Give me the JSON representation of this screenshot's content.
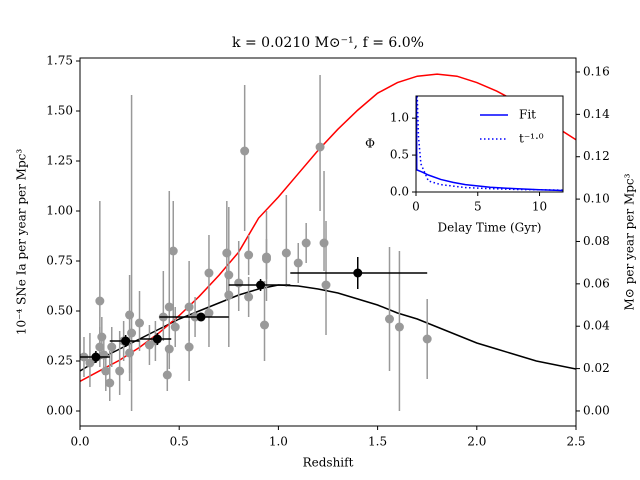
{
  "chart_data": [
    {
      "type": "errorbar",
      "title": "k = 0.0210 M⊙⁻¹, f = 6.0%",
      "xlabel": "Redshift",
      "ylabel": "10⁻⁴ SNe Ia per year per Mpc³",
      "y2label": "M⊙ per year per Mpc³",
      "xlim": [
        0,
        2.5
      ],
      "ylim": [
        -0.075,
        1.765
      ],
      "y2lim": [
        -0.0071,
        0.1666
      ],
      "xticks": [
        {
          "value": 0,
          "label": "0.0"
        },
        {
          "value": 0.5,
          "label": "0.5"
        },
        {
          "value": 1,
          "label": "1.0"
        },
        {
          "value": 1.5,
          "label": "1.5"
        },
        {
          "value": 2,
          "label": "2.0"
        },
        {
          "value": 2.5,
          "label": "2.5"
        }
      ],
      "yticks": [
        {
          "value": 0,
          "label": "0.00"
        },
        {
          "value": 0.25,
          "label": "0.25"
        },
        {
          "value": 0.5,
          "label": "0.50"
        },
        {
          "value": 0.75,
          "label": "0.75"
        },
        {
          "value": 1,
          "label": "1.00"
        },
        {
          "value": 1.25,
          "label": "1.25"
        },
        {
          "value": 1.5,
          "label": "1.50"
        },
        {
          "value": 1.75,
          "label": "1.75"
        }
      ],
      "y2ticks": [
        {
          "value": 0,
          "label": "0.00"
        },
        {
          "value": 0.02,
          "label": "0.02"
        },
        {
          "value": 0.04,
          "label": "0.04"
        },
        {
          "value": 0.06,
          "label": "0.06"
        },
        {
          "value": 0.08,
          "label": "0.08"
        },
        {
          "value": 0.1,
          "label": "0.10"
        },
        {
          "value": 0.12,
          "label": "0.12"
        },
        {
          "value": 0.14,
          "label": "0.14"
        },
        {
          "value": 0.16,
          "label": "0.16"
        }
      ],
      "points": {
        "color": "#999999",
        "x": [
          0.02,
          0.05,
          0.1,
          0.1,
          0.11,
          0.12,
          0.13,
          0.15,
          0.16,
          0.2,
          0.22,
          0.25,
          0.25,
          0.26,
          0.3,
          0.35,
          0.38,
          0.42,
          0.44,
          0.45,
          0.45,
          0.47,
          0.48,
          0.55,
          0.55,
          0.58,
          0.65,
          0.65,
          0.74,
          0.75,
          0.75,
          0.8,
          0.83,
          0.85,
          0.85,
          0.93,
          0.94,
          0.94,
          1.04,
          1.1,
          1.14,
          1.21,
          1.23,
          1.24,
          1.56,
          1.61,
          1.75
        ],
        "values": [
          0.27,
          0.24,
          0.55,
          0.32,
          0.37,
          0.28,
          0.2,
          0.14,
          0.32,
          0.2,
          0.35,
          0.48,
          0.29,
          0.39,
          0.44,
          0.33,
          0.35,
          0.47,
          0.18,
          0.52,
          0.31,
          0.8,
          0.42,
          0.32,
          0.52,
          0.47,
          0.69,
          0.49,
          0.79,
          0.68,
          0.58,
          0.64,
          1.3,
          0.57,
          0.78,
          0.43,
          0.77,
          0.76,
          0.79,
          0.74,
          0.84,
          1.32,
          0.84,
          0.63,
          0.46,
          0.42,
          0.36
        ],
        "y_low": [
          0.17,
          0.12,
          0.28,
          0.22,
          0.27,
          0.18,
          0.1,
          0.05,
          0.22,
          0.08,
          0.25,
          0.15,
          0.19,
          0.0,
          0.3,
          0.23,
          0.25,
          0.35,
          0.1,
          0.3,
          0.21,
          0.45,
          0.32,
          0.15,
          0.35,
          0.37,
          0.55,
          0.32,
          0.55,
          0.32,
          0.48,
          0.5,
          0.9,
          0.47,
          0.68,
          0.25,
          0.55,
          0.66,
          0.62,
          0.64,
          0.74,
          1.0,
          0.7,
          0.38,
          0.2,
          0.0,
          0.16
        ],
        "y_high": [
          0.37,
          0.39,
          1.05,
          0.42,
          0.47,
          0.38,
          0.3,
          0.3,
          0.42,
          0.4,
          0.45,
          0.68,
          0.39,
          1.58,
          0.6,
          0.43,
          0.45,
          0.7,
          0.3,
          1.1,
          0.41,
          1.05,
          0.52,
          0.45,
          0.75,
          0.57,
          0.88,
          0.62,
          1.05,
          1.02,
          0.68,
          0.85,
          1.63,
          0.67,
          0.88,
          0.65,
          1.0,
          0.86,
          1.08,
          0.84,
          0.94,
          1.68,
          1.2,
          0.95,
          0.82,
          0.8,
          0.56
        ]
      },
      "binned": {
        "color": "#000000",
        "x": [
          0.08,
          0.23,
          0.39,
          0.61,
          0.91,
          1.4
        ],
        "values": [
          0.27,
          0.35,
          0.36,
          0.47,
          0.63,
          0.69
        ],
        "x_low": [
          0.0,
          0.15,
          0.3,
          0.4,
          0.75,
          1.06
        ],
        "x_high": [
          0.15,
          0.3,
          0.46,
          0.75,
          1.06,
          1.75
        ],
        "y_low": [
          0.24,
          0.32,
          0.33,
          0.45,
          0.6,
          0.61
        ],
        "y_high": [
          0.3,
          0.38,
          0.39,
          0.49,
          0.66,
          0.77
        ]
      },
      "series": [
        {
          "color": "#000000",
          "x": [
            0,
            0.1,
            0.2,
            0.3,
            0.4,
            0.5,
            0.6,
            0.7,
            0.8,
            0.9,
            1.0,
            1.1,
            1.2,
            1.3,
            1.4,
            1.5,
            1.6,
            1.7,
            1.8,
            1.9,
            2.0,
            2.1,
            2.2,
            2.3,
            2.4,
            2.5
          ],
          "values": [
            0.2,
            0.26,
            0.31,
            0.36,
            0.41,
            0.46,
            0.5,
            0.54,
            0.58,
            0.61,
            0.63,
            0.625,
            0.61,
            0.59,
            0.56,
            0.53,
            0.49,
            0.46,
            0.42,
            0.38,
            0.34,
            0.31,
            0.28,
            0.25,
            0.23,
            0.21
          ]
        },
        {
          "color": "#ff0000",
          "axis": "y2",
          "x": [
            0,
            0.1,
            0.2,
            0.3,
            0.4,
            0.5,
            0.6,
            0.7,
            0.8,
            0.9,
            1.0,
            1.1,
            1.2,
            1.3,
            1.4,
            1.5,
            1.6,
            1.7,
            1.8,
            1.9,
            2.0,
            2.1,
            2.2,
            2.3,
            2.4,
            2.5
          ],
          "values": [
            0.014,
            0.019,
            0.024,
            0.03,
            0.037,
            0.045,
            0.054,
            0.064,
            0.075,
            0.091,
            0.101,
            0.112,
            0.123,
            0.133,
            0.142,
            0.15,
            0.155,
            0.158,
            0.159,
            0.158,
            0.155,
            0.151,
            0.146,
            0.14,
            0.134,
            0.128
          ]
        }
      ]
    },
    {
      "type": "line",
      "xlabel": "Delay Time (Gyr)",
      "ylabel": "Φ",
      "xlim": [
        0,
        11.9
      ],
      "ylim": [
        0,
        1.3
      ],
      "xticks": [
        0,
        5,
        10
      ],
      "yticks": [
        {
          "value": 0,
          "label": "0.0"
        },
        {
          "value": 0.5,
          "label": "0.5"
        },
        {
          "value": 1,
          "label": "1.0"
        }
      ],
      "legend": "upper right",
      "series": [
        {
          "name": "Fit",
          "color": "#0000ff",
          "dashed": false,
          "x": [
            0.04,
            0.06,
            0.5,
            1,
            2,
            3,
            4,
            6,
            8,
            10,
            11.9
          ],
          "values": [
            1.3,
            0.3,
            0.27,
            0.23,
            0.17,
            0.13,
            0.1,
            0.065,
            0.045,
            0.03,
            0.02
          ]
        },
        {
          "name": "t⁻¹·⁰",
          "color": "#0000ff",
          "dashed": true,
          "x": [
            0.1,
            0.2,
            0.4,
            1,
            2,
            4,
            6,
            8,
            10,
            11.9
          ],
          "values": [
            1.3,
            0.75,
            0.38,
            0.15,
            0.1,
            0.06,
            0.045,
            0.035,
            0.03,
            0.025
          ]
        }
      ]
    }
  ]
}
